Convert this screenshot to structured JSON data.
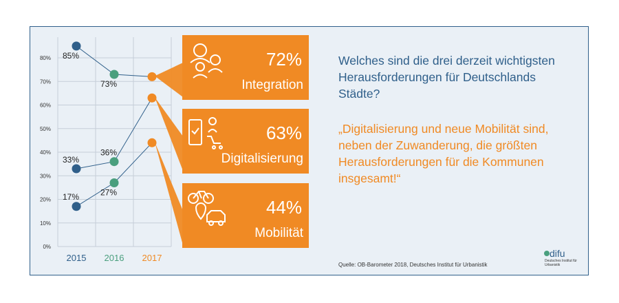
{
  "chart_data": {
    "type": "line",
    "categories": [
      "2015",
      "2016",
      "2017"
    ],
    "category_colors": [
      "#2f5f8a",
      "#4a9f7e",
      "#f08a24"
    ],
    "ylim": [
      0,
      80
    ],
    "yticks": [
      "0%",
      "10%",
      "20%",
      "30%",
      "40%",
      "50%",
      "60%",
      "70%",
      "80%"
    ],
    "series": [
      {
        "name": "Integration",
        "values": [
          85,
          73,
          72
        ],
        "labels": [
          "85%",
          "73%",
          ""
        ]
      },
      {
        "name": "Digitalisierung",
        "values": [
          33,
          36,
          63
        ],
        "labels": [
          "33%",
          "36%",
          ""
        ]
      },
      {
        "name": "Mobilität",
        "values": [
          17,
          27,
          44
        ],
        "labels": [
          "17%",
          "27%",
          ""
        ]
      }
    ]
  },
  "callouts": [
    {
      "pct": "72%",
      "label": "Integration",
      "icon": "people-icon"
    },
    {
      "pct": "63%",
      "label": "Digitalisierung",
      "icon": "phone-cart-icon"
    },
    {
      "pct": "44%",
      "label": "Mobilität",
      "icon": "bike-car-icon"
    }
  ],
  "question": "Welches sind die drei derzeit wichtigsten Herausforderungen für Deutschlands Städte?",
  "quote": "„Digitalisierung und neue Mobilität sind, neben der Zuwanderung, die größten Herausforderungen für die Kommunen insgesamt!“",
  "source": "Quelle: OB-Barometer 2018, Deutsches Institut für Urbanistik",
  "logo": {
    "name": "difu",
    "subtitle": "Deutsches Institut für Urbanistik"
  },
  "colors": {
    "blue": "#2f5f8a",
    "green": "#4a9f7e",
    "orange": "#f08a24",
    "background": "#eaf0f6"
  }
}
